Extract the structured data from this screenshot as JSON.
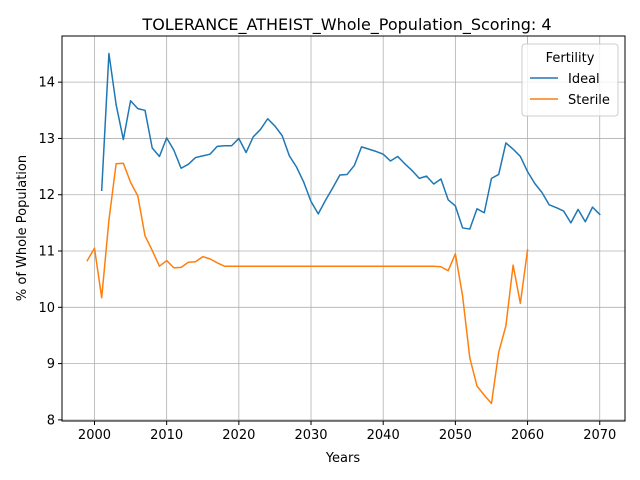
{
  "chart_data": {
    "type": "line",
    "title": "TOLERANCE_ATHEIST_Whole_Population_Scoring: 4",
    "xlabel": "Years",
    "ylabel": "% of Whole Population",
    "xlim": [
      1995.5,
      2073.5
    ],
    "ylim": [
      7.98,
      14.82
    ],
    "xticks": [
      2000,
      2010,
      2020,
      2030,
      2040,
      2050,
      2060,
      2070
    ],
    "yticks": [
      8,
      9,
      10,
      11,
      12,
      13,
      14
    ],
    "grid": true,
    "legend": {
      "title": "Fertility",
      "placement": "top-right"
    },
    "series": [
      {
        "name": "Ideal",
        "color": "#1f77b4",
        "x": [
          2001,
          2002,
          2003,
          2004,
          2005,
          2006,
          2007,
          2008,
          2009,
          2010,
          2011,
          2012,
          2013,
          2014,
          2015,
          2016,
          2017,
          2018,
          2019,
          2020,
          2021,
          2022,
          2023,
          2024,
          2025,
          2026,
          2027,
          2028,
          2029,
          2030,
          2031,
          2032,
          2033,
          2034,
          2035,
          2036,
          2037,
          2038,
          2039,
          2040,
          2041,
          2042,
          2043,
          2044,
          2045,
          2046,
          2047,
          2048,
          2049,
          2050,
          2051,
          2052,
          2053,
          2054,
          2055,
          2056,
          2057,
          2058,
          2059,
          2060,
          2061,
          2062,
          2063,
          2064,
          2065,
          2066,
          2067,
          2068,
          2069,
          2070
        ],
        "values": [
          12.08,
          14.51,
          13.6,
          12.98,
          13.67,
          13.53,
          13.5,
          12.83,
          12.68,
          13.01,
          12.79,
          12.47,
          12.54,
          12.66,
          12.69,
          12.72,
          12.86,
          12.87,
          12.87,
          13.0,
          12.75,
          13.03,
          13.16,
          13.35,
          13.22,
          13.05,
          12.69,
          12.49,
          12.22,
          11.88,
          11.66,
          11.9,
          12.12,
          12.35,
          12.36,
          12.52,
          12.85,
          12.81,
          12.77,
          12.72,
          12.6,
          12.68,
          12.55,
          12.43,
          12.29,
          12.33,
          12.19,
          12.28,
          11.91,
          11.8,
          11.41,
          11.39,
          11.75,
          11.68,
          12.29,
          12.36,
          12.92,
          12.81,
          12.68,
          12.41,
          12.2,
          12.04,
          11.82,
          11.77,
          11.71,
          11.5,
          11.74,
          11.52,
          11.78,
          11.65
        ]
      },
      {
        "name": "Sterile",
        "color": "#ff7f0e",
        "x": [
          1999,
          2000,
          2001,
          2002,
          2003,
          2004,
          2005,
          2006,
          2007,
          2008,
          2009,
          2010,
          2011,
          2012,
          2013,
          2014,
          2015,
          2016,
          2017,
          2018,
          2019,
          2020,
          2021,
          2022,
          2023,
          2024,
          2025,
          2026,
          2027,
          2028,
          2029,
          2030,
          2031,
          2032,
          2033,
          2034,
          2035,
          2036,
          2037,
          2038,
          2039,
          2040,
          2041,
          2042,
          2043,
          2044,
          2045,
          2046,
          2047,
          2048,
          2049,
          2050,
          2051,
          2052,
          2053,
          2054,
          2055,
          2056,
          2057,
          2058,
          2059,
          2060
        ],
        "values": [
          10.83,
          11.05,
          10.17,
          11.55,
          12.55,
          12.56,
          12.22,
          11.98,
          11.27,
          11.01,
          10.73,
          10.83,
          10.7,
          10.71,
          10.8,
          10.81,
          10.9,
          10.86,
          10.79,
          10.73,
          10.73,
          10.73,
          10.73,
          10.73,
          10.73,
          10.73,
          10.73,
          10.73,
          10.73,
          10.73,
          10.73,
          10.73,
          10.73,
          10.73,
          10.73,
          10.73,
          10.73,
          10.73,
          10.73,
          10.73,
          10.73,
          10.73,
          10.73,
          10.73,
          10.73,
          10.73,
          10.73,
          10.73,
          10.73,
          10.72,
          10.65,
          10.95,
          10.2,
          9.1,
          8.6,
          8.44,
          8.29,
          9.2,
          9.67,
          10.75,
          10.07,
          11.02
        ]
      }
    ]
  }
}
